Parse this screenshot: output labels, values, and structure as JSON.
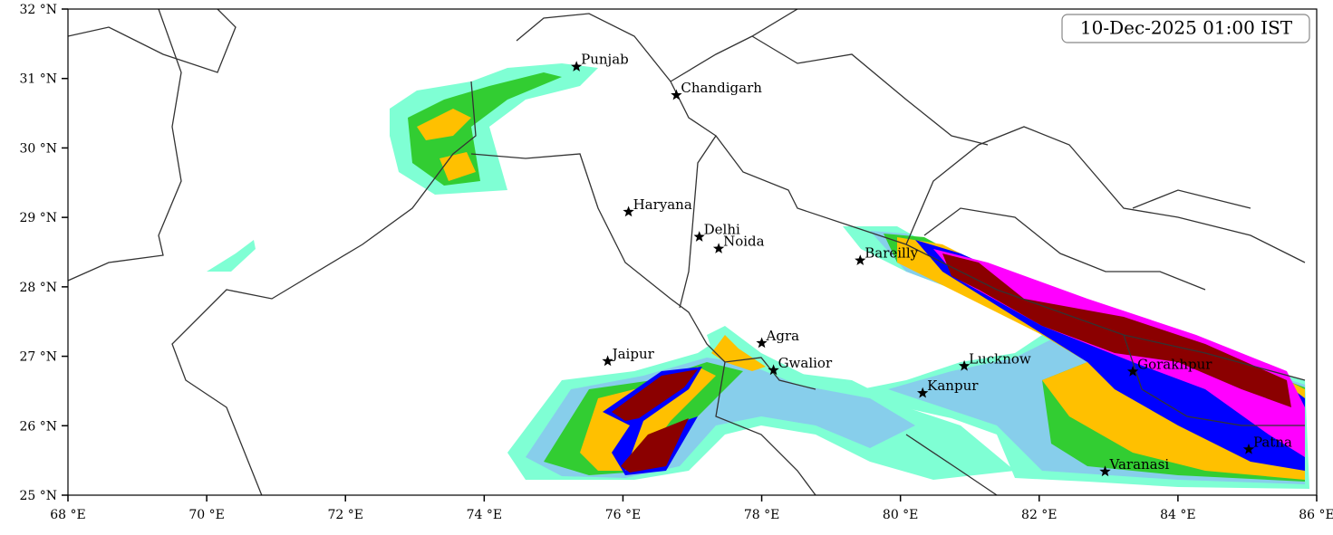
{
  "title": "10-Dec-2025 01:00 IST",
  "map": {
    "xlim": [
      68,
      86
    ],
    "ylim": [
      25,
      32
    ],
    "xticks": [
      {
        "value": 68,
        "label": "68 °E"
      },
      {
        "value": 70,
        "label": "70 °E"
      },
      {
        "value": 72,
        "label": "72 °E"
      },
      {
        "value": 74,
        "label": "74 °E"
      },
      {
        "value": 76,
        "label": "76 °E"
      },
      {
        "value": 78,
        "label": "78 °E"
      },
      {
        "value": 80,
        "label": "80 °E"
      },
      {
        "value": 82,
        "label": "82 °E"
      },
      {
        "value": 84,
        "label": "84 °E"
      },
      {
        "value": 86,
        "label": "86 °E"
      }
    ],
    "yticks": [
      {
        "value": 25,
        "label": "25 °N"
      },
      {
        "value": 26,
        "label": "26 °N"
      },
      {
        "value": 27,
        "label": "27 °N"
      },
      {
        "value": 28,
        "label": "28 °N"
      },
      {
        "value": 29,
        "label": "29 °N"
      },
      {
        "value": 30,
        "label": "30 °N"
      },
      {
        "value": 31,
        "label": "31 °N"
      },
      {
        "value": 32,
        "label": "32 °N"
      }
    ]
  },
  "cities": [
    {
      "name": "Punjab",
      "lon": 75.33,
      "lat": 31.17
    },
    {
      "name": "Chandigarh",
      "lon": 76.77,
      "lat": 30.76
    },
    {
      "name": "Haryana",
      "lon": 76.08,
      "lat": 29.08
    },
    {
      "name": "Delhi",
      "lon": 77.1,
      "lat": 28.72
    },
    {
      "name": "Noida",
      "lon": 77.38,
      "lat": 28.55
    },
    {
      "name": "Bareilly",
      "lon": 79.42,
      "lat": 28.38
    },
    {
      "name": "Agra",
      "lon": 78.0,
      "lat": 27.19
    },
    {
      "name": "Jaipur",
      "lon": 75.78,
      "lat": 26.93
    },
    {
      "name": "Gwalior",
      "lon": 78.17,
      "lat": 26.8
    },
    {
      "name": "Lucknow",
      "lon": 80.92,
      "lat": 26.86
    },
    {
      "name": "Kanpur",
      "lon": 80.32,
      "lat": 26.47
    },
    {
      "name": "Gorakhpur",
      "lon": 83.35,
      "lat": 26.78
    },
    {
      "name": "Varanasi",
      "lon": 82.95,
      "lat": 25.34
    },
    {
      "name": "Patna",
      "lon": 85.02,
      "lat": 25.66
    }
  ]
}
